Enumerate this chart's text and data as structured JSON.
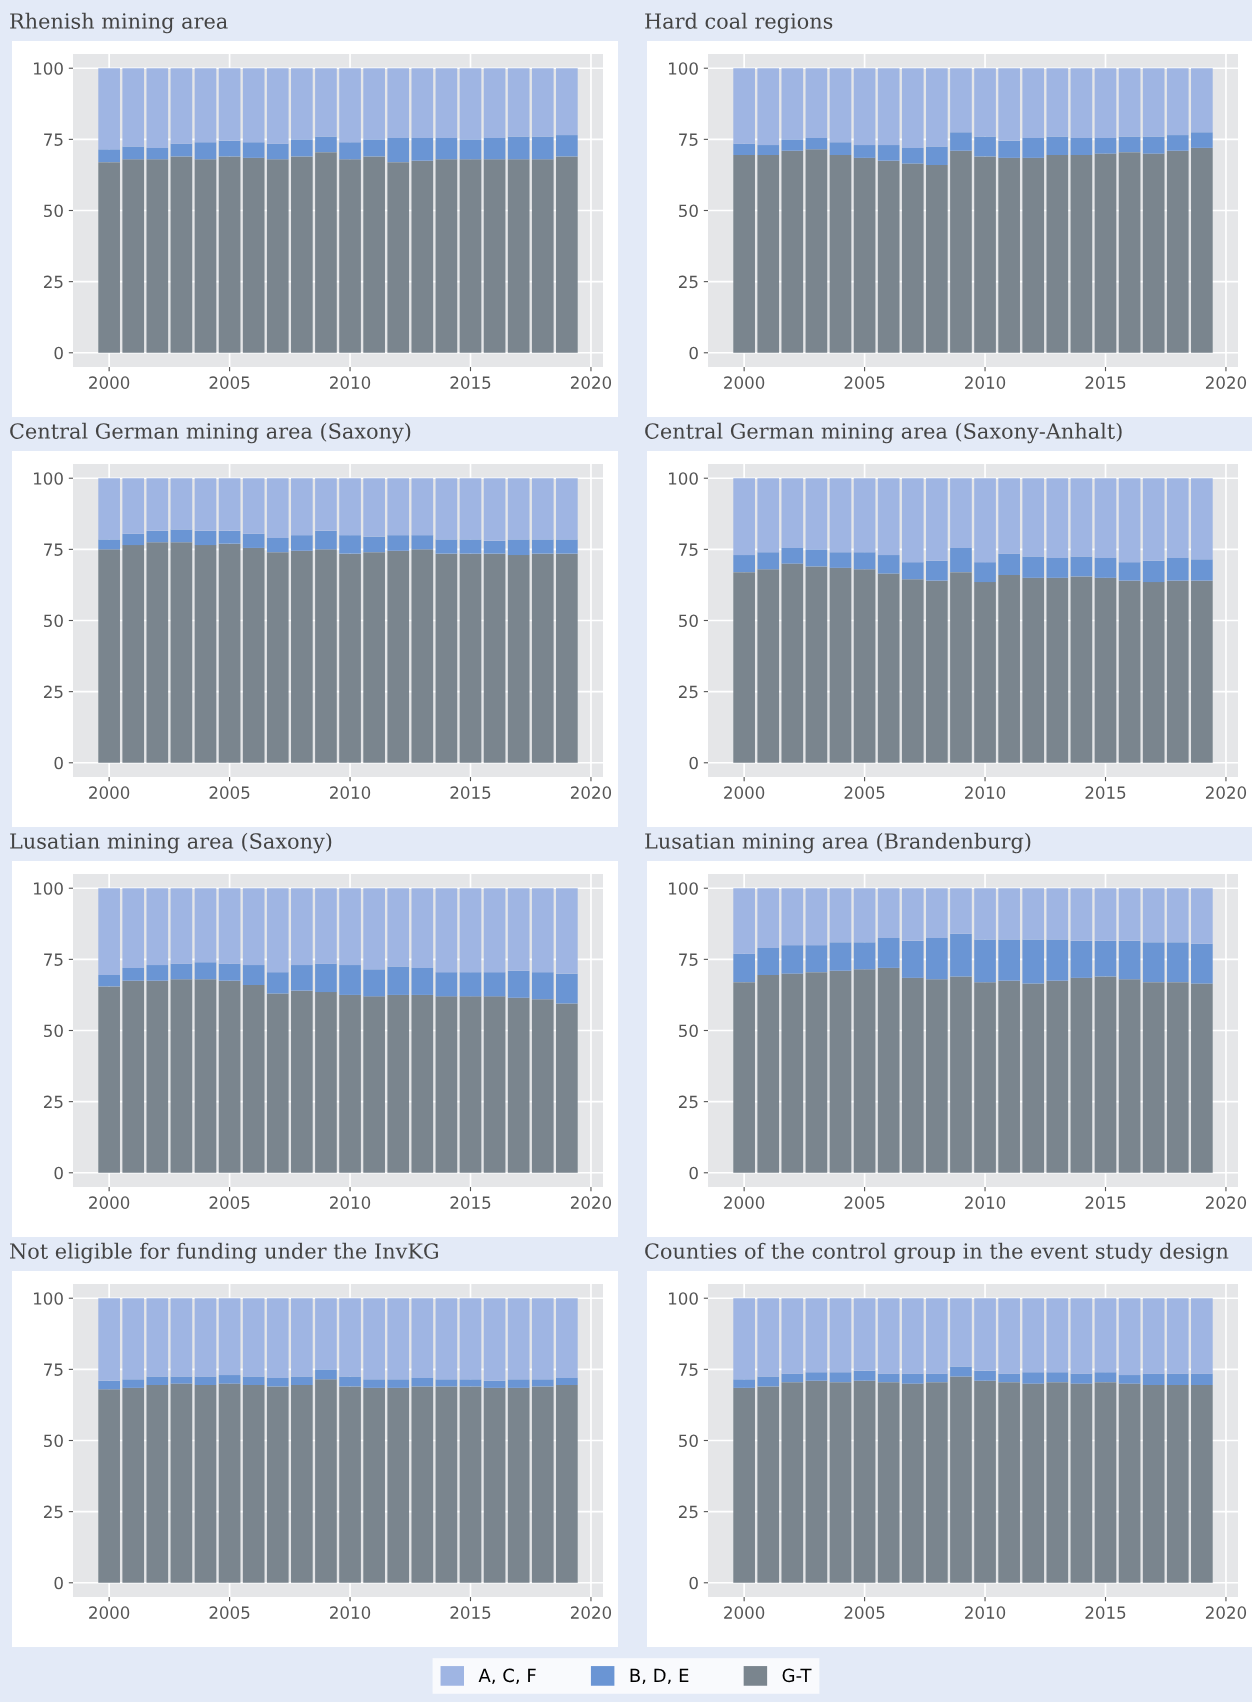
{
  "chart_data": [
    {
      "type": "bar",
      "stacked": true,
      "title": "Rhenish mining area",
      "x": [
        2000,
        2001,
        2002,
        2003,
        2004,
        2005,
        2006,
        2007,
        2008,
        2009,
        2010,
        2011,
        2012,
        2013,
        2014,
        2015,
        2016,
        2017,
        2018,
        2019
      ],
      "xlim": [
        1998.5,
        2020.5
      ],
      "xticks": [
        2000,
        2005,
        2010,
        2015,
        2020
      ],
      "ylim": [
        -5,
        105
      ],
      "yticks": [
        0,
        25,
        50,
        75,
        100
      ],
      "grid": true,
      "legend": false,
      "series": [
        {
          "color": "#7a858e",
          "values": [
            67,
            68,
            68,
            69,
            68,
            69,
            68.5,
            68,
            69,
            70.5,
            68,
            69,
            67,
            67.5,
            68,
            68,
            68,
            68,
            68,
            69
          ]
        },
        {
          "color": "#6a95d4",
          "values": [
            4.5,
            4.5,
            4,
            4.5,
            6,
            5.5,
            5.5,
            5.5,
            6,
            5.5,
            6,
            6,
            8.5,
            8,
            7.5,
            7,
            7.5,
            8,
            8,
            7.5
          ]
        },
        {
          "color": "#9fb5e3",
          "values": [
            28.5,
            27.5,
            28,
            26.5,
            26,
            25.5,
            26,
            26.5,
            25,
            24,
            26,
            25,
            24.5,
            24.5,
            24.5,
            25,
            24.5,
            24,
            24,
            23.5
          ]
        }
      ]
    },
    {
      "type": "bar",
      "stacked": true,
      "title": "Hard coal regions",
      "x": [
        2000,
        2001,
        2002,
        2003,
        2004,
        2005,
        2006,
        2007,
        2008,
        2009,
        2010,
        2011,
        2012,
        2013,
        2014,
        2015,
        2016,
        2017,
        2018,
        2019
      ],
      "xlim": [
        1998.5,
        2020.5
      ],
      "xticks": [
        2000,
        2005,
        2010,
        2015,
        2020
      ],
      "ylim": [
        -5,
        105
      ],
      "yticks": [
        0,
        25,
        50,
        75,
        100
      ],
      "grid": true,
      "legend": false,
      "series": [
        {
          "color": "#7a858e",
          "values": [
            69.5,
            69.5,
            71,
            71.5,
            69.5,
            68.5,
            67.5,
            66.5,
            66,
            71,
            69,
            68.5,
            68.5,
            69.5,
            69.5,
            70,
            70.5,
            70,
            71,
            72
          ]
        },
        {
          "color": "#6a95d4",
          "values": [
            4,
            3.5,
            4,
            4,
            4.5,
            4.5,
            5.5,
            5.5,
            6.5,
            6.5,
            7,
            6,
            7,
            6.5,
            6,
            5.5,
            5.5,
            6,
            5.5,
            5.5
          ]
        },
        {
          "color": "#9fb5e3",
          "values": [
            26.5,
            27,
            25,
            24.5,
            26,
            27,
            27,
            28,
            27.5,
            22.5,
            24,
            25.5,
            24.5,
            24,
            24.5,
            24.5,
            24,
            24,
            23.5,
            22.5
          ]
        }
      ]
    },
    {
      "type": "bar",
      "stacked": true,
      "title": "Central German mining area (Saxony)",
      "x": [
        2000,
        2001,
        2002,
        2003,
        2004,
        2005,
        2006,
        2007,
        2008,
        2009,
        2010,
        2011,
        2012,
        2013,
        2014,
        2015,
        2016,
        2017,
        2018,
        2019
      ],
      "xlim": [
        1998.5,
        2020.5
      ],
      "xticks": [
        2000,
        2005,
        2010,
        2015,
        2020
      ],
      "ylim": [
        -5,
        105
      ],
      "yticks": [
        0,
        25,
        50,
        75,
        100
      ],
      "grid": true,
      "legend": false,
      "series": [
        {
          "color": "#7a858e",
          "values": [
            75,
            76.5,
            77.5,
            77.5,
            76.5,
            77,
            75.5,
            74,
            74.5,
            75,
            73.5,
            74,
            74.5,
            75,
            73.5,
            73.5,
            73.5,
            73,
            73.5,
            73.5
          ]
        },
        {
          "color": "#6a95d4",
          "values": [
            3.5,
            4,
            4,
            4.5,
            5,
            4.5,
            5,
            5,
            5.5,
            6.5,
            6.5,
            5.5,
            5.5,
            5,
            5,
            5,
            4.5,
            5.5,
            5,
            5
          ]
        },
        {
          "color": "#9fb5e3",
          "values": [
            21.5,
            19.5,
            18.5,
            18,
            18.5,
            18.5,
            19.5,
            21,
            20,
            18.5,
            20,
            20.5,
            20,
            20,
            21.5,
            21.5,
            22,
            21.5,
            21.5,
            21.5
          ]
        }
      ]
    },
    {
      "type": "bar",
      "stacked": true,
      "title": "Central German mining area (Saxony-Anhalt)",
      "x": [
        2000,
        2001,
        2002,
        2003,
        2004,
        2005,
        2006,
        2007,
        2008,
        2009,
        2010,
        2011,
        2012,
        2013,
        2014,
        2015,
        2016,
        2017,
        2018,
        2019
      ],
      "xlim": [
        1998.5,
        2020.5
      ],
      "xticks": [
        2000,
        2005,
        2010,
        2015,
        2020
      ],
      "ylim": [
        -5,
        105
      ],
      "yticks": [
        0,
        25,
        50,
        75,
        100
      ],
      "grid": true,
      "legend": false,
      "series": [
        {
          "color": "#7a858e",
          "values": [
            67,
            68,
            70,
            69,
            68.5,
            68,
            66.5,
            64.5,
            64,
            67,
            63.5,
            66,
            65,
            65,
            65.5,
            65,
            64,
            63.5,
            64,
            64
          ]
        },
        {
          "color": "#6a95d4",
          "values": [
            6,
            6,
            5.5,
            6,
            5.5,
            6,
            6.5,
            6,
            7,
            8.5,
            7,
            7.5,
            7.5,
            7,
            7,
            7,
            6.5,
            7.5,
            8,
            7.5
          ]
        },
        {
          "color": "#9fb5e3",
          "values": [
            27,
            26,
            24.5,
            25,
            26,
            26,
            27,
            29.5,
            29,
            24.5,
            29.5,
            26.5,
            27.5,
            28,
            27.5,
            28,
            29.5,
            29,
            28,
            28.5
          ]
        }
      ]
    },
    {
      "type": "bar",
      "stacked": true,
      "title": "Lusatian mining area (Saxony)",
      "x": [
        2000,
        2001,
        2002,
        2003,
        2004,
        2005,
        2006,
        2007,
        2008,
        2009,
        2010,
        2011,
        2012,
        2013,
        2014,
        2015,
        2016,
        2017,
        2018,
        2019
      ],
      "xlim": [
        1998.5,
        2020.5
      ],
      "xticks": [
        2000,
        2005,
        2010,
        2015,
        2020
      ],
      "ylim": [
        -5,
        105
      ],
      "yticks": [
        0,
        25,
        50,
        75,
        100
      ],
      "grid": true,
      "legend": false,
      "series": [
        {
          "color": "#7a858e",
          "values": [
            65.5,
            67.5,
            67.5,
            68,
            68,
            67.5,
            66,
            63,
            64,
            63.5,
            62.5,
            62,
            62.5,
            62.5,
            62,
            62,
            62,
            61.5,
            61,
            59.5
          ]
        },
        {
          "color": "#6a95d4",
          "values": [
            4,
            4.5,
            5.5,
            5.5,
            6,
            6,
            7,
            7.5,
            9,
            10,
            10.5,
            9.5,
            10,
            9.5,
            8.5,
            8.5,
            8.5,
            9.5,
            9.5,
            10.5
          ]
        },
        {
          "color": "#9fb5e3",
          "values": [
            30.5,
            28,
            27,
            26.5,
            26,
            26.5,
            27,
            29.5,
            27,
            26.5,
            27,
            28.5,
            27.5,
            28,
            29.5,
            29.5,
            29.5,
            29,
            29.5,
            30
          ]
        }
      ]
    },
    {
      "type": "bar",
      "stacked": true,
      "title": "Lusatian mining area (Brandenburg)",
      "x": [
        2000,
        2001,
        2002,
        2003,
        2004,
        2005,
        2006,
        2007,
        2008,
        2009,
        2010,
        2011,
        2012,
        2013,
        2014,
        2015,
        2016,
        2017,
        2018,
        2019
      ],
      "xlim": [
        1998.5,
        2020.5
      ],
      "xticks": [
        2000,
        2005,
        2010,
        2015,
        2020
      ],
      "ylim": [
        -5,
        105
      ],
      "yticks": [
        0,
        25,
        50,
        75,
        100
      ],
      "grid": true,
      "legend": false,
      "series": [
        {
          "color": "#7a858e",
          "values": [
            67,
            69.5,
            70,
            70.5,
            71,
            71.5,
            72,
            68.5,
            68,
            69,
            67,
            67.5,
            66.5,
            67.5,
            68.5,
            69,
            68,
            67,
            67,
            66.5
          ]
        },
        {
          "color": "#6a95d4",
          "values": [
            10,
            9.5,
            10,
            9.5,
            10,
            9.5,
            10.5,
            13,
            14.5,
            15,
            15,
            14.5,
            15.5,
            14.5,
            13,
            12.5,
            13.5,
            14,
            14,
            14
          ]
        },
        {
          "color": "#9fb5e3",
          "values": [
            23,
            21,
            20,
            20,
            19,
            19,
            17.5,
            18.5,
            17.5,
            16,
            18,
            18,
            18,
            18,
            18.5,
            18.5,
            18.5,
            19,
            19,
            19.5
          ]
        }
      ]
    },
    {
      "type": "bar",
      "stacked": true,
      "title": "Not eligible for funding under the InvKG",
      "x": [
        2000,
        2001,
        2002,
        2003,
        2004,
        2005,
        2006,
        2007,
        2008,
        2009,
        2010,
        2011,
        2012,
        2013,
        2014,
        2015,
        2016,
        2017,
        2018,
        2019
      ],
      "xlim": [
        1998.5,
        2020.5
      ],
      "xticks": [
        2000,
        2005,
        2010,
        2015,
        2020
      ],
      "ylim": [
        -5,
        105
      ],
      "yticks": [
        0,
        25,
        50,
        75,
        100
      ],
      "grid": true,
      "legend": false,
      "series": [
        {
          "color": "#7a858e",
          "values": [
            68,
            68.5,
            69.5,
            70,
            69.5,
            70,
            69.5,
            69,
            69.5,
            71.5,
            69,
            68.5,
            68.5,
            69,
            69,
            69,
            68.5,
            68.5,
            69,
            69.5
          ]
        },
        {
          "color": "#6a95d4",
          "values": [
            3,
            3,
            3,
            2.5,
            3,
            3,
            3,
            3,
            3,
            3.5,
            3.5,
            3,
            3,
            3,
            2.5,
            2.5,
            2.5,
            3,
            2.5,
            2.5
          ]
        },
        {
          "color": "#9fb5e3",
          "values": [
            29,
            28.5,
            27.5,
            27.5,
            27.5,
            27,
            27.5,
            28,
            27.5,
            25,
            27.5,
            28.5,
            28.5,
            28,
            28.5,
            28.5,
            29,
            28.5,
            28.5,
            28
          ]
        }
      ]
    },
    {
      "type": "bar",
      "stacked": true,
      "title": "Counties of the control group in the event study design",
      "x": [
        2000,
        2001,
        2002,
        2003,
        2004,
        2005,
        2006,
        2007,
        2008,
        2009,
        2010,
        2011,
        2012,
        2013,
        2014,
        2015,
        2016,
        2017,
        2018,
        2019
      ],
      "xlim": [
        1998.5,
        2020.5
      ],
      "xticks": [
        2000,
        2005,
        2010,
        2015,
        2020
      ],
      "ylim": [
        -5,
        105
      ],
      "yticks": [
        0,
        25,
        50,
        75,
        100
      ],
      "grid": true,
      "legend": "bottom",
      "series": [
        {
          "name": "G-T",
          "color": "#7a858e",
          "values": [
            68.5,
            69,
            70.5,
            71,
            70.5,
            71,
            70.5,
            70,
            70.5,
            72.5,
            71,
            70.5,
            70,
            70.5,
            70,
            70.5,
            70,
            69.5,
            69.5,
            69.5
          ]
        },
        {
          "name": "B, D, E",
          "color": "#6a95d4",
          "values": [
            3,
            3.5,
            3,
            3,
            3.5,
            3.5,
            3,
            3.5,
            3,
            3.5,
            3.5,
            3,
            4,
            3.5,
            3.5,
            3.5,
            3,
            4,
            4,
            4
          ]
        },
        {
          "name": "A, C, F",
          "color": "#9fb5e3",
          "values": [
            28.5,
            27.5,
            26.5,
            26,
            26,
            25.5,
            26.5,
            26.5,
            26.5,
            24,
            25.5,
            26.5,
            26,
            26,
            26.5,
            26,
            27,
            26.5,
            26.5,
            26.5
          ]
        }
      ]
    }
  ]
}
